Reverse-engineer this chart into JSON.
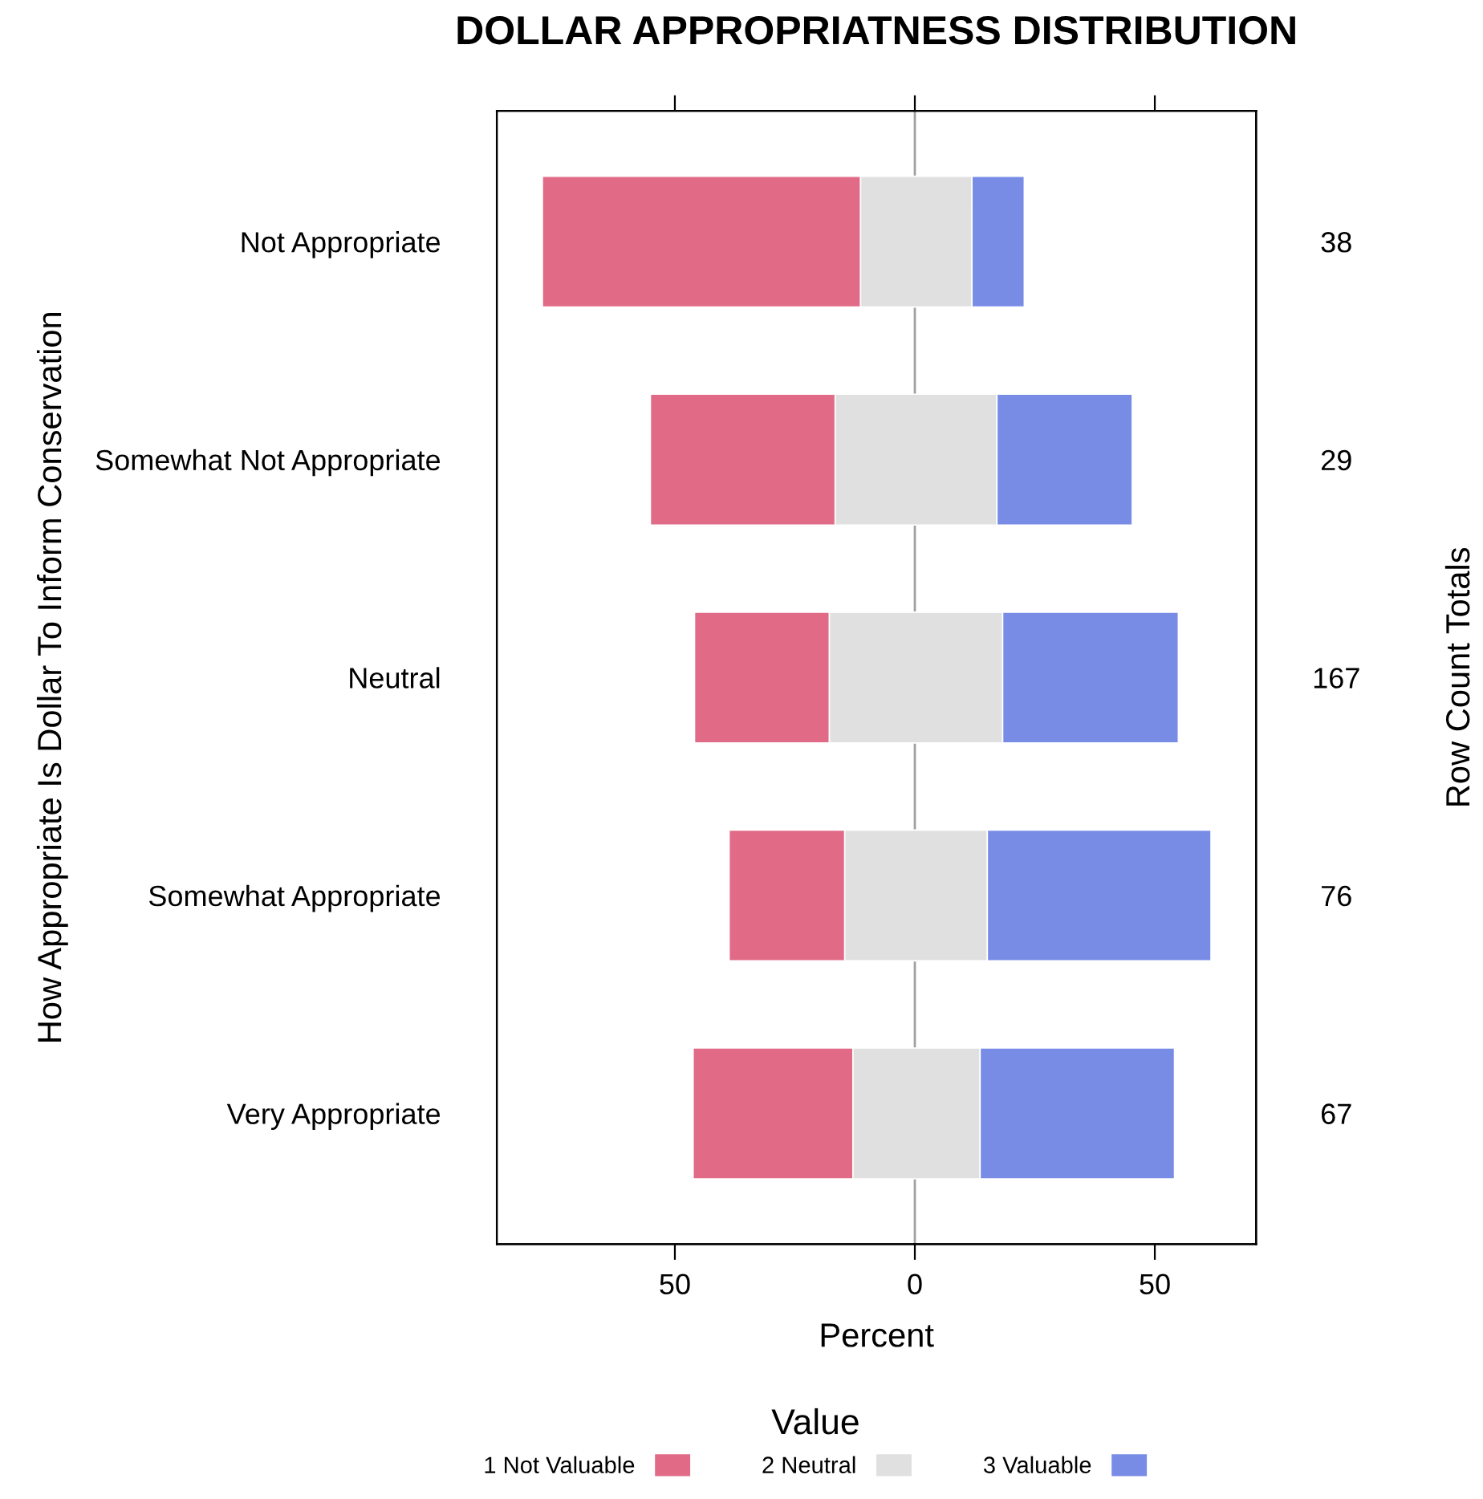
{
  "chart_data": {
    "type": "bar",
    "orientation": "horizontal",
    "title": "DOLLAR APPROPRIATNESS DISTRIBUTION",
    "xlabel": "Percent",
    "ylabel": "How Appropriate Is Dollar To Inform Conservation",
    "legend_title": "Value",
    "legend": "bottom",
    "categories": [
      "Not Appropriate",
      "Somewhat Not Appropriate",
      "Neutral",
      "Somewhat Appropriate",
      "Very Appropriate"
    ],
    "series": [
      {
        "name": "1 Not Valuable",
        "color": "#e16a86",
        "values": [
          66.3,
          38.5,
          28.1,
          24.1,
          33.3
        ],
        "base": [
          -77.6,
          -55.1,
          -45.9,
          -38.7,
          -46.2
        ]
      },
      {
        "name": "2 Neutral",
        "color": "#e0e0e0",
        "values": [
          23.2,
          33.7,
          36.1,
          29.7,
          26.5
        ],
        "base": [
          -11.3,
          -16.6,
          -17.8,
          -14.6,
          -12.9
        ]
      },
      {
        "name": "3 Valuable",
        "color": "#788ce6",
        "values": [
          10.9,
          28.2,
          36.6,
          46.6,
          40.5
        ],
        "base": [
          11.9,
          17.1,
          18.3,
          15.1,
          13.6
        ]
      }
    ],
    "xlim": [
      -87.1,
      71.1
    ],
    "xticks": [
      {
        "value": -50,
        "label": "50"
      },
      0,
      50
    ],
    "ref_lines": [
      {
        "axis": "x",
        "value": 0,
        "label": null,
        "color": "#a0a0a0"
      }
    ],
    "annotations": [
      "38",
      "29",
      "167",
      "76",
      "67",
      "Row Count Totals"
    ],
    "grid": false
  }
}
